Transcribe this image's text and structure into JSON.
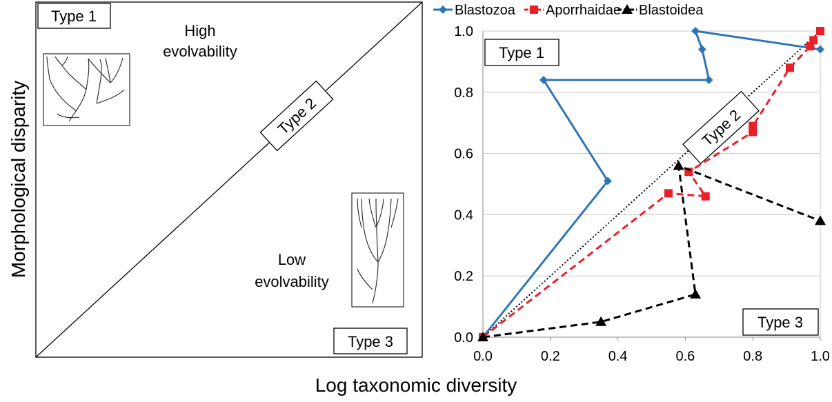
{
  "x_label": "Log taxonomic diversity",
  "y_label": "Morphological disparity",
  "chart_data": [
    {
      "type": "concept",
      "type1": "Type 1",
      "type2": "Type 2",
      "type3": "Type 3",
      "high": [
        "High",
        "evolvability"
      ],
      "low": [
        "Low",
        "evolvability"
      ]
    },
    {
      "type": "line",
      "xlim": [
        0,
        1
      ],
      "ylim": [
        0,
        1
      ],
      "xticks": [
        {
          "value": 0,
          "label": "0.0"
        },
        {
          "value": 0.2,
          "label": "0.2"
        },
        {
          "value": 0.4,
          "label": "0.4"
        },
        {
          "value": 0.6,
          "label": "0.6"
        },
        {
          "value": 0.8,
          "label": "0.8"
        },
        {
          "value": 1,
          "label": "1.0"
        }
      ],
      "yticks": [
        {
          "value": 0,
          "label": "0.0"
        },
        {
          "value": 0.2,
          "label": "0.2"
        },
        {
          "value": 0.4,
          "label": "0.4"
        },
        {
          "value": 0.6,
          "label": "0.6"
        },
        {
          "value": 0.8,
          "label": "0.8"
        },
        {
          "value": 1,
          "label": "1.0"
        }
      ],
      "grid": true,
      "annotations": [
        "Type 1",
        "Type 2",
        "Type 3"
      ],
      "series": [
        {
          "name": "Blastozoa",
          "color": "#2e75b6",
          "marker": "diamond",
          "dash": false,
          "x": [
            0,
            0.37,
            0.18,
            0.67,
            0.65,
            0.63,
            1.0
          ],
          "values": [
            0,
            0.51,
            0.84,
            0.84,
            0.94,
            1.0,
            0.94
          ]
        },
        {
          "name": "Aporrhaidae",
          "color": "#e8202a",
          "marker": "square",
          "dash": true,
          "x": [
            0,
            0.55,
            0.66,
            0.61,
            0.8,
            0.8,
            0.91,
            0.97,
            0.98,
            1.0
          ],
          "values": [
            0,
            0.47,
            0.46,
            0.54,
            0.67,
            0.69,
            0.88,
            0.95,
            0.97,
            1.0
          ]
        },
        {
          "name": "Blastoidea",
          "color": "#000000",
          "marker": "triangle",
          "dash": true,
          "x": [
            0,
            0.35,
            0.63,
            0.58,
            1.0
          ],
          "values": [
            0,
            0.05,
            0.14,
            0.56,
            0.38
          ]
        }
      ]
    }
  ]
}
